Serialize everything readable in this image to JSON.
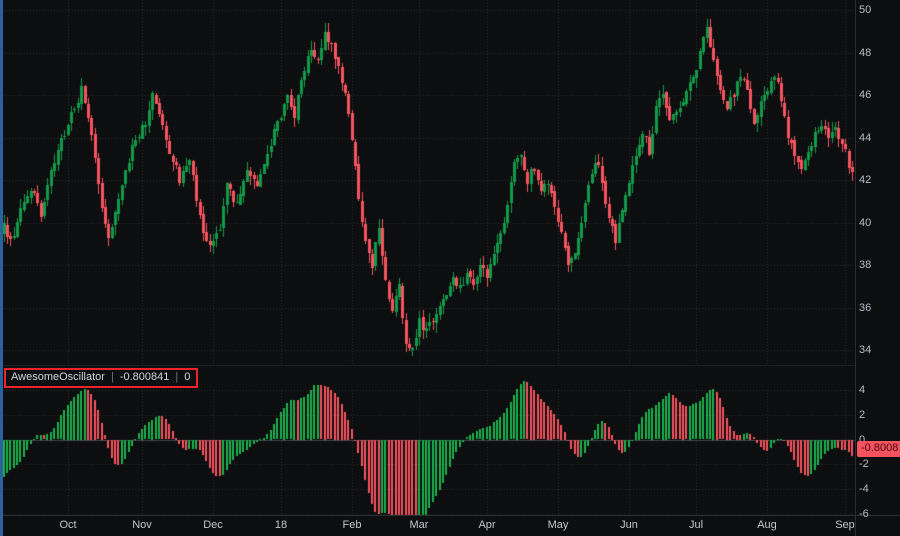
{
  "indicator": {
    "name": "AwesomeOscillator",
    "value": "-0.800841",
    "zero": "0",
    "separator": "|",
    "badge": "-0.8008"
  },
  "colors": {
    "background": "#0d0e10",
    "candle_up": "#129a48",
    "candle_down": "#f6545e",
    "osc_up": "#1cb04c",
    "osc_down": "#f6545e",
    "grid": "rgba(255,255,255,0.13)",
    "zero_line": "rgba(200,204,212,0.30)",
    "axis_text": "#b8bcc6",
    "badge_background": "#f7525f",
    "badge_text": "#42080d",
    "selection_border": "#ef2129",
    "accent_strip": "#2a62a0",
    "separator_line": "#2a2d33"
  },
  "chart_data": {
    "type": "candlestick_with_oscillator",
    "title": "",
    "grid": "dotted",
    "price_axis": {
      "min": 34,
      "max": 50,
      "ticks": [
        50,
        48,
        46,
        44,
        42,
        40,
        38,
        36,
        34
      ]
    },
    "oscillator_axis": {
      "min": -6,
      "max": 4,
      "ticks": [
        4,
        2,
        0,
        -2,
        -4,
        -6
      ]
    },
    "x_axis": {
      "labels": [
        {
          "label": "Oct",
          "day": 19
        },
        {
          "label": "Nov",
          "day": 41
        },
        {
          "label": "Dec",
          "day": 62
        },
        {
          "label": "18",
          "day": 82
        },
        {
          "label": "Feb",
          "day": 103
        },
        {
          "label": "Mar",
          "day": 123
        },
        {
          "label": "Apr",
          "day": 143
        },
        {
          "label": "May",
          "day": 164
        },
        {
          "label": "Jun",
          "day": 185
        },
        {
          "label": "Jul",
          "day": 205
        },
        {
          "label": "Aug",
          "day": 226
        },
        {
          "label": "Sep",
          "day": 249
        }
      ]
    },
    "num_days": 252,
    "lead_in_days": 40,
    "oscillator": {
      "name": "AwesomeOscillator",
      "last_value": -0.800841,
      "zero_line": 0
    },
    "price_keypoints": [
      [
        -40,
        46.5
      ],
      [
        -34,
        47.0
      ],
      [
        -28,
        45.5
      ],
      [
        -22,
        44.0
      ],
      [
        -16,
        41.8
      ],
      [
        -10,
        40.0
      ],
      [
        -6,
        38.9
      ],
      [
        -3,
        39.3
      ],
      [
        0,
        39.8
      ],
      [
        2,
        39.1
      ],
      [
        5,
        40.6
      ],
      [
        8,
        41.6
      ],
      [
        11,
        40.3
      ],
      [
        14,
        42.3
      ],
      [
        17,
        43.8
      ],
      [
        20,
        45.0
      ],
      [
        23,
        46.2
      ],
      [
        25,
        45.2
      ],
      [
        27,
        43.2
      ],
      [
        29,
        40.8
      ],
      [
        31,
        39.4
      ],
      [
        34,
        41.0
      ],
      [
        36,
        42.6
      ],
      [
        39,
        43.9
      ],
      [
        42,
        44.7
      ],
      [
        44,
        46.0
      ],
      [
        46,
        45.0
      ],
      [
        49,
        43.4
      ],
      [
        52,
        42.0
      ],
      [
        55,
        42.9
      ],
      [
        58,
        40.2
      ],
      [
        61,
        38.9
      ],
      [
        64,
        39.9
      ],
      [
        66,
        41.7
      ],
      [
        69,
        41.0
      ],
      [
        72,
        42.4
      ],
      [
        75,
        41.5
      ],
      [
        78,
        43.2
      ],
      [
        81,
        44.6
      ],
      [
        84,
        45.9
      ],
      [
        86,
        45.1
      ],
      [
        88,
        46.7
      ],
      [
        91,
        48.1
      ],
      [
        93,
        47.5
      ],
      [
        95,
        48.8
      ],
      [
        97,
        48.2
      ],
      [
        99,
        47.4
      ],
      [
        101,
        45.9
      ],
      [
        103,
        44.1
      ],
      [
        105,
        41.2
      ],
      [
        107,
        39.0
      ],
      [
        109,
        38.1
      ],
      [
        111,
        39.6
      ],
      [
        113,
        37.2
      ],
      [
        115,
        35.9
      ],
      [
        117,
        37.0
      ],
      [
        119,
        34.5
      ],
      [
        121,
        33.9
      ],
      [
        123,
        35.3
      ],
      [
        125,
        34.9
      ],
      [
        127,
        35.3
      ],
      [
        129,
        35.9
      ],
      [
        131,
        36.6
      ],
      [
        133,
        37.3
      ],
      [
        135,
        37.0
      ],
      [
        137,
        37.6
      ],
      [
        139,
        37.2
      ],
      [
        141,
        37.9
      ],
      [
        143,
        37.5
      ],
      [
        145,
        38.3
      ],
      [
        147,
        39.3
      ],
      [
        149,
        40.9
      ],
      [
        151,
        42.7
      ],
      [
        153,
        43.4
      ],
      [
        155,
        42.0
      ],
      [
        157,
        42.6
      ],
      [
        159,
        41.4
      ],
      [
        161,
        41.8
      ],
      [
        163,
        40.8
      ],
      [
        165,
        39.3
      ],
      [
        167,
        37.9
      ],
      [
        169,
        38.5
      ],
      [
        171,
        40.0
      ],
      [
        173,
        41.7
      ],
      [
        175,
        43.0
      ],
      [
        177,
        42.0
      ],
      [
        179,
        40.0
      ],
      [
        181,
        39.3
      ],
      [
        183,
        40.6
      ],
      [
        185,
        41.8
      ],
      [
        187,
        43.2
      ],
      [
        189,
        44.3
      ],
      [
        191,
        43.3
      ],
      [
        193,
        45.3
      ],
      [
        195,
        46.2
      ],
      [
        197,
        44.9
      ],
      [
        199,
        45.4
      ],
      [
        201,
        45.9
      ],
      [
        203,
        46.8
      ],
      [
        205,
        47.4
      ],
      [
        207,
        48.8
      ],
      [
        208,
        49.2
      ],
      [
        210,
        47.7
      ],
      [
        212,
        46.3
      ],
      [
        214,
        45.4
      ],
      [
        216,
        46.0
      ],
      [
        218,
        46.9
      ],
      [
        220,
        46.1
      ],
      [
        222,
        44.9
      ],
      [
        224,
        45.6
      ],
      [
        226,
        46.2
      ],
      [
        228,
        47.0
      ],
      [
        230,
        45.8
      ],
      [
        232,
        44.2
      ],
      [
        234,
        43.1
      ],
      [
        236,
        42.7
      ],
      [
        238,
        43.5
      ],
      [
        240,
        44.2
      ],
      [
        242,
        44.6
      ],
      [
        244,
        43.8
      ],
      [
        246,
        44.3
      ],
      [
        248,
        43.9
      ],
      [
        250,
        42.8
      ],
      [
        251,
        42.5
      ]
    ],
    "synthesis": {
      "seed": 1337,
      "close_jitter": 0.5,
      "wick_extent": 0.45,
      "open_gap": 0.2
    }
  }
}
